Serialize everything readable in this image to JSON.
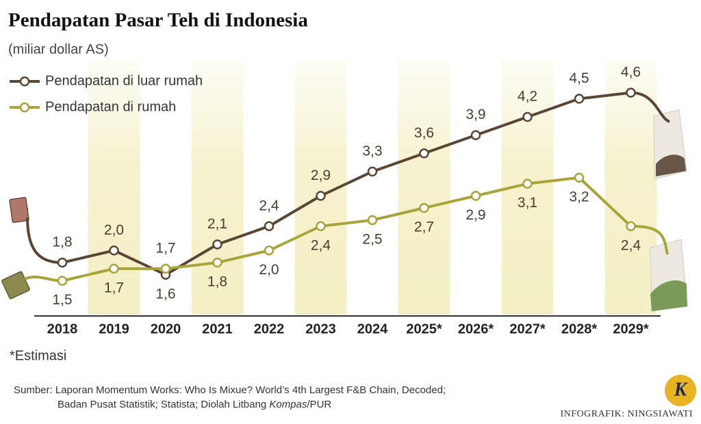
{
  "chart_data": {
    "type": "line",
    "title": "Pendapatan Pasar Teh di Indonesia",
    "subtitle": "(miliar dollar AS)",
    "categories": [
      "2018",
      "2019",
      "2020",
      "2021",
      "2022",
      "2023",
      "2024",
      "2025*",
      "2026*",
      "2027*",
      "2028*",
      "2029*"
    ],
    "series": [
      {
        "name": "Pendapatan di luar rumah",
        "color": "#5b4636",
        "values": [
          1.8,
          2.0,
          1.6,
          2.1,
          2.4,
          2.9,
          3.3,
          3.6,
          3.9,
          4.2,
          4.5,
          4.6
        ],
        "value_labels": [
          "1,8",
          "2,0",
          "1,6",
          "2,1",
          "2,4",
          "2,9",
          "3,3",
          "3,6",
          "3,9",
          "4,2",
          "4,5",
          "4,6"
        ]
      },
      {
        "name": "Pendapatan di rumah",
        "color": "#a8a43a",
        "values": [
          1.5,
          1.7,
          1.7,
          1.8,
          2.0,
          2.4,
          2.5,
          2.7,
          2.9,
          3.1,
          3.2,
          2.4
        ],
        "value_labels": [
          "1,5",
          "1,7",
          "1,7",
          "1,8",
          "2,0",
          "2,4",
          "2,5",
          "2,7",
          "2,9",
          "3,1",
          "3,2",
          "2,4"
        ]
      }
    ],
    "ylim": [
      1,
      5
    ],
    "note": "*Estimasi",
    "source": [
      "Sumber: Laporan Momentum Works: Who Is Mixue? World’s 4th Largest F&B Chain, Decoded;",
      "Badan Pusat Statistik; Statista; Diolah Litbang ",
      "Kompas",
      "/PUR"
    ],
    "credit": "INFOGRAFIK: NINGSIAWATI",
    "logo": "K"
  }
}
